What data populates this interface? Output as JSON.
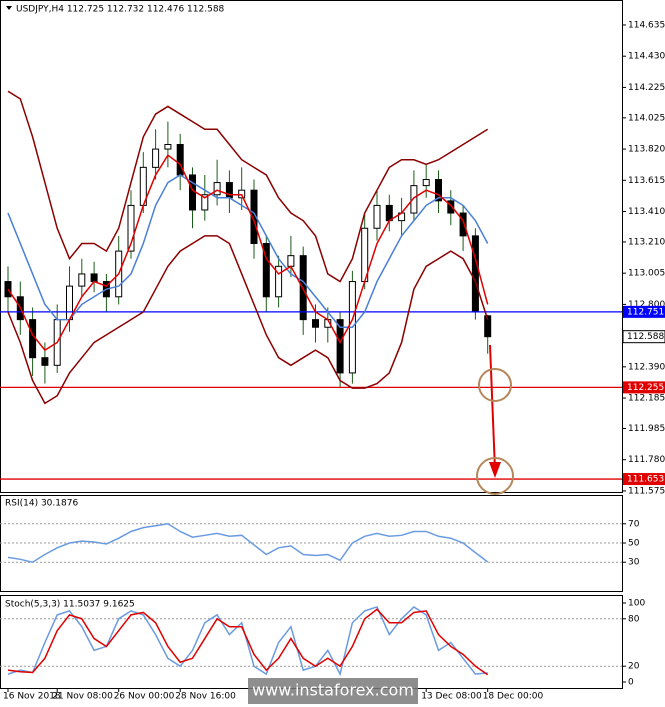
{
  "chart_data": [
    {
      "type": "candlestick",
      "title": "USDJPY,H4  112.725 112.732 112.476 112.588",
      "ylim": [
        111.568,
        114.799
      ],
      "yticks": [
        114.635,
        {
          "value": 114.43,
          "label": "114.430"
        },
        114.225,
        114.025,
        {
          "value": 113.82,
          "label": "113.820"
        },
        113.615,
        {
          "value": 113.41,
          "label": "113.410"
        },
        {
          "value": 113.21,
          "label": "113.210"
        },
        113.005,
        {
          "value": 112.8,
          "label": "112.800"
        },
        {
          "value": 112.39,
          "label": "112.390"
        },
        112.185,
        111.985,
        {
          "value": 111.78,
          "label": "111.780"
        },
        111.575
      ],
      "categories": [
        "16 Nov 2018",
        null,
        null,
        null,
        "21 Nov 08:00",
        null,
        null,
        null,
        null,
        "26 Nov 00:00",
        null,
        null,
        null,
        null,
        "28 Nov 16:00",
        null,
        null,
        null,
        null,
        null,
        null,
        null,
        null,
        null,
        null,
        null,
        null,
        null,
        null,
        null,
        null,
        null,
        null,
        null,
        "13 Dec 08:00",
        null,
        null,
        null,
        null,
        "18 Dec 00:00"
      ],
      "up_color": "#000000",
      "down_color": "#000000",
      "wick_color": "#1a5c1a",
      "open": [
        112.95,
        112.85,
        112.7,
        112.45,
        112.4,
        112.7,
        112.92,
        113.0,
        112.95,
        112.85,
        113.15,
        113.45,
        113.7,
        113.82,
        113.85,
        113.65,
        113.42,
        113.52,
        113.6,
        113.5,
        113.55,
        113.2,
        112.85,
        113.05,
        113.12,
        112.7,
        112.65,
        112.7,
        112.35,
        112.95,
        113.3,
        113.45,
        113.35,
        113.4,
        113.58,
        113.62,
        113.48,
        113.4,
        113.25,
        112.725
      ],
      "high": [
        113.05,
        112.95,
        112.78,
        112.55,
        112.8,
        113.05,
        113.1,
        113.08,
        113.0,
        113.25,
        113.55,
        113.8,
        113.95,
        114.0,
        113.92,
        113.7,
        113.65,
        113.75,
        113.68,
        113.7,
        113.62,
        113.25,
        113.12,
        113.25,
        113.18,
        112.8,
        112.78,
        112.75,
        113.02,
        113.4,
        113.55,
        113.52,
        113.5,
        113.68,
        113.72,
        113.68,
        113.55,
        113.45,
        113.3,
        112.732
      ],
      "low": [
        112.75,
        112.6,
        112.33,
        112.28,
        112.35,
        112.62,
        112.85,
        112.88,
        112.75,
        112.8,
        113.1,
        113.4,
        113.62,
        113.7,
        113.55,
        113.3,
        113.35,
        113.45,
        113.4,
        113.42,
        113.1,
        112.75,
        112.78,
        112.98,
        112.6,
        112.55,
        112.55,
        112.25,
        112.28,
        112.9,
        113.22,
        113.28,
        113.25,
        113.35,
        113.5,
        113.4,
        113.32,
        113.15,
        112.7,
        112.476
      ],
      "close": [
        112.85,
        112.7,
        112.45,
        112.4,
        112.7,
        112.92,
        113.0,
        112.95,
        112.85,
        113.15,
        113.45,
        113.7,
        113.82,
        113.85,
        113.65,
        113.42,
        113.52,
        113.6,
        113.5,
        113.55,
        113.2,
        112.85,
        113.05,
        113.12,
        112.7,
        112.65,
        112.7,
        112.35,
        112.95,
        113.3,
        113.45,
        113.35,
        113.4,
        113.58,
        113.62,
        113.48,
        113.4,
        113.25,
        112.75,
        112.588
      ],
      "series": [
        {
          "color": "#8b0000",
          "values": [
            114.2,
            114.15,
            113.9,
            113.6,
            113.3,
            113.1,
            113.2,
            113.2,
            113.15,
            113.3,
            113.6,
            113.9,
            114.05,
            114.1,
            114.05,
            114.0,
            113.95,
            113.95,
            113.85,
            113.75,
            113.7,
            113.65,
            113.5,
            113.4,
            113.35,
            113.25,
            113.0,
            112.95,
            113.1,
            113.4,
            113.55,
            113.7,
            113.75,
            113.75,
            113.72,
            113.75,
            113.8,
            113.85,
            113.9,
            113.95
          ]
        },
        {
          "color": "#8b0000",
          "values": [
            112.75,
            112.55,
            112.3,
            112.15,
            112.2,
            112.35,
            112.45,
            112.55,
            112.6,
            112.65,
            112.7,
            112.75,
            112.9,
            113.05,
            113.15,
            113.2,
            113.25,
            113.25,
            113.2,
            113.0,
            112.8,
            112.6,
            112.45,
            112.4,
            112.45,
            112.5,
            112.45,
            112.3,
            112.25,
            112.25,
            112.28,
            112.35,
            112.55,
            112.9,
            113.05,
            113.1,
            113.15,
            113.1,
            112.95,
            112.7
          ]
        },
        {
          "color": "#4a7fd6",
          "values": [
            113.4,
            113.2,
            113.0,
            112.8,
            112.7,
            112.7,
            112.8,
            112.85,
            112.9,
            112.92,
            113.0,
            113.2,
            113.45,
            113.6,
            113.65,
            113.6,
            113.55,
            113.5,
            113.5,
            113.45,
            113.4,
            113.25,
            113.1,
            113.0,
            112.95,
            112.85,
            112.75,
            112.65,
            112.65,
            112.75,
            112.95,
            113.1,
            113.25,
            113.35,
            113.45,
            113.5,
            113.5,
            113.45,
            113.35,
            113.2
          ]
        },
        {
          "color": "#e00000",
          "values": [
            112.9,
            112.78,
            112.6,
            112.5,
            112.55,
            112.7,
            112.85,
            112.95,
            112.92,
            113.0,
            113.2,
            113.45,
            113.65,
            113.78,
            113.72,
            113.55,
            113.5,
            113.55,
            113.52,
            113.52,
            113.35,
            113.1,
            113.0,
            113.05,
            112.9,
            112.75,
            112.7,
            112.55,
            112.7,
            112.95,
            113.2,
            113.35,
            113.4,
            113.5,
            113.55,
            113.52,
            113.45,
            113.35,
            113.1,
            112.8
          ]
        }
      ],
      "levels": [
        {
          "price": 112.751,
          "color": "#0000ff"
        },
        {
          "price": 112.255,
          "color": "#e00000"
        },
        {
          "price": 111.653,
          "color": "#e00000"
        }
      ],
      "watermark": "www.instaforex.com"
    },
    {
      "type": "line",
      "title": "RSI(14) 30.1876",
      "ylim": [
        0,
        100
      ],
      "yticks": [
        70,
        50,
        30
      ],
      "levels": [
        70,
        50,
        30
      ],
      "series": [
        {
          "color": "#6a9be0",
          "values": [
            35,
            33,
            30,
            38,
            45,
            50,
            52,
            51,
            49,
            55,
            62,
            66,
            68,
            70,
            62,
            56,
            58,
            60,
            57,
            58,
            48,
            38,
            45,
            47,
            38,
            37,
            38,
            32,
            50,
            57,
            60,
            57,
            58,
            62,
            62,
            57,
            55,
            50,
            40,
            30.1876
          ]
        }
      ]
    },
    {
      "type": "line",
      "title": "Stoch(5,3,3) 11.5037 9.1625",
      "ylim": [
        0,
        100
      ],
      "yticks": [
        100,
        80,
        20,
        0
      ],
      "levels": [
        80,
        20
      ],
      "series": [
        {
          "color": "#6a9be0",
          "values": [
            10,
            15,
            12,
            50,
            85,
            90,
            70,
            40,
            45,
            80,
            90,
            85,
            60,
            30,
            20,
            40,
            75,
            85,
            60,
            75,
            20,
            10,
            50,
            70,
            15,
            20,
            40,
            10,
            75,
            90,
            95,
            60,
            80,
            95,
            85,
            40,
            50,
            30,
            10,
            11.5037
          ]
        },
        {
          "color": "#e00000",
          "values": [
            15,
            13,
            12,
            30,
            65,
            85,
            80,
            55,
            45,
            65,
            85,
            88,
            75,
            45,
            25,
            30,
            55,
            80,
            70,
            70,
            35,
            15,
            30,
            55,
            30,
            20,
            30,
            20,
            45,
            80,
            92,
            75,
            75,
            88,
            90,
            60,
            45,
            35,
            20,
            9.1625
          ]
        }
      ]
    }
  ]
}
